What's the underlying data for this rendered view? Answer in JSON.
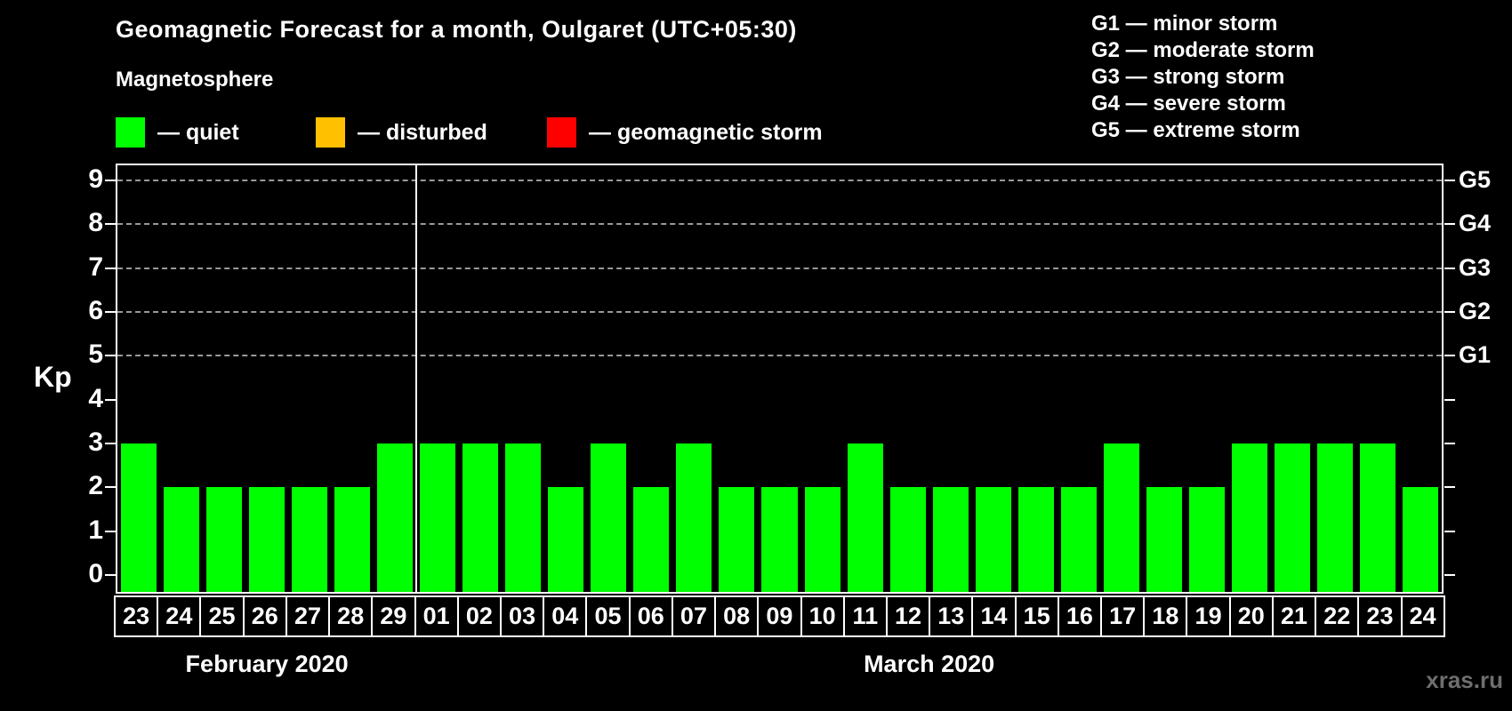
{
  "header": {
    "title": "Geomagnetic Forecast for a month, Oulgaret (UTC+05:30)",
    "subtitle": "Magnetosphere",
    "legend": [
      {
        "label": "— quiet",
        "color": "#00ff00"
      },
      {
        "label": "— disturbed",
        "color": "#ffc000"
      },
      {
        "label": "— geomagnetic storm",
        "color": "#ff0000"
      }
    ]
  },
  "g_scale_legend": [
    "G1 — minor storm",
    "G2 — moderate storm",
    "G3 — strong storm",
    "G4 — severe storm",
    "G5 — extreme storm"
  ],
  "watermark": "xras.ru",
  "chart_data": {
    "type": "bar",
    "ylabel": "Kp",
    "ylim": [
      0,
      9
    ],
    "yticks": [
      0,
      1,
      2,
      3,
      4,
      5,
      6,
      7,
      8,
      9
    ],
    "grid_levels_kp": [
      5,
      6,
      7,
      8,
      9
    ],
    "right_axis_labels": [
      {
        "label": "G5",
        "kp": 9
      },
      {
        "label": "G4",
        "kp": 8
      },
      {
        "label": "G3",
        "kp": 7
      },
      {
        "label": "G2",
        "kp": 6
      },
      {
        "label": "G1",
        "kp": 5
      }
    ],
    "bar_color": "#00ff00",
    "grid_on": true,
    "months": [
      {
        "label": "February 2020",
        "days": [
          "23",
          "24",
          "25",
          "26",
          "27",
          "28",
          "29"
        ],
        "values": [
          3,
          2,
          2,
          2,
          2,
          2,
          3
        ]
      },
      {
        "label": "March 2020",
        "days": [
          "01",
          "02",
          "03",
          "04",
          "05",
          "06",
          "07",
          "08",
          "09",
          "10",
          "11",
          "12",
          "13",
          "14",
          "15",
          "16",
          "17",
          "18",
          "19",
          "20",
          "21",
          "22",
          "23",
          "24"
        ],
        "values": [
          3,
          3,
          3,
          2,
          3,
          2,
          3,
          2,
          2,
          2,
          3,
          2,
          2,
          2,
          2,
          2,
          3,
          2,
          2,
          3,
          3,
          3,
          3,
          2
        ]
      }
    ]
  }
}
